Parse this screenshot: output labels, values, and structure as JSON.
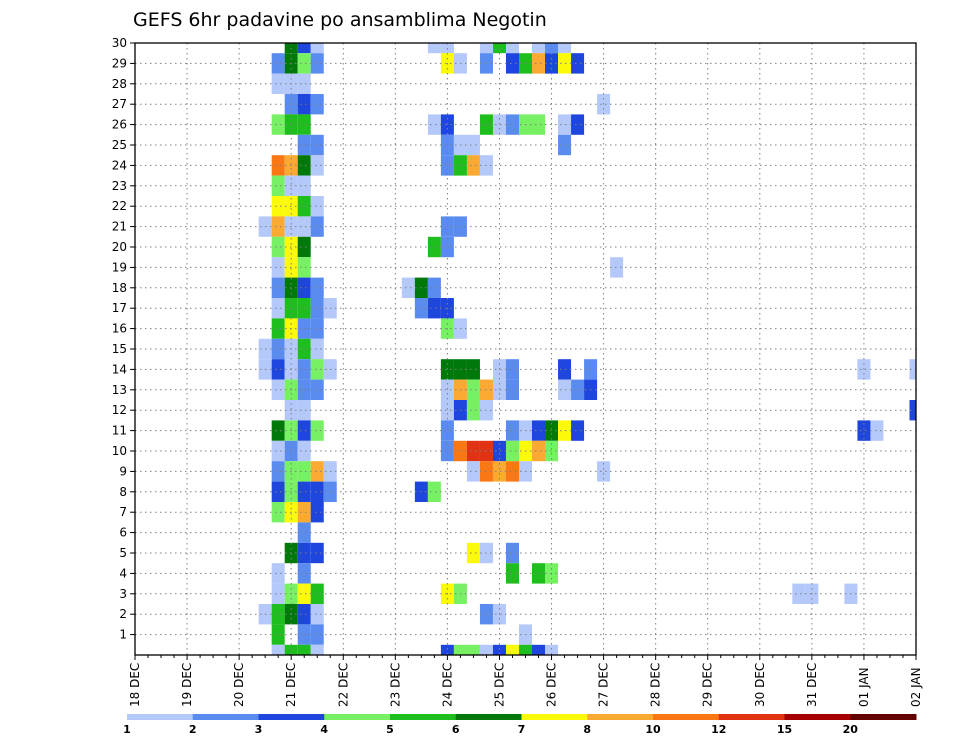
{
  "chart_data": {
    "type": "heatmap",
    "title": "GEFS 6hr padavine po ansamblima Negotin",
    "xlabel": "",
    "ylabel": "",
    "x_tick_labels": [
      "18 DEC",
      "19 DEC",
      "20 DEC",
      "21 DEC",
      "22 DEC",
      "23 DEC",
      "24 DEC",
      "25 DEC",
      "26 DEC",
      "27 DEC",
      "28 DEC",
      "29 DEC",
      "30 DEC",
      "31 DEC",
      "01 JAN",
      "02 JAN"
    ],
    "y_tick_labels": [
      "1",
      "2",
      "3",
      "4",
      "5",
      "6",
      "7",
      "8",
      "9",
      "10",
      "11",
      "12",
      "13",
      "14",
      "15",
      "16",
      "17",
      "18",
      "19",
      "20",
      "21",
      "22",
      "23",
      "24",
      "25",
      "26",
      "27",
      "28",
      "29",
      "30"
    ],
    "x_range_steps": [
      0,
      60
    ],
    "y_range": [
      0,
      30
    ],
    "steps_per_day": 4,
    "grid": true,
    "legend_position": "bottom",
    "colorbar": {
      "labels": [
        "1",
        "2",
        "3",
        "4",
        "5",
        "6",
        "7",
        "8",
        "10",
        "12",
        "15",
        "20"
      ],
      "colors": [
        "#b4c8fa",
        "#5a8cf0",
        "#1e46dc",
        "#78f064",
        "#1ebe1e",
        "#00780a",
        "#fafa0a",
        "#faaa32",
        "#fa7814",
        "#e13214",
        "#a50000",
        "#640000"
      ]
    },
    "levels": [
      1,
      2,
      3,
      4,
      5,
      6,
      7,
      8,
      10,
      12,
      15,
      20
    ],
    "cells": [
      [
        30,
        12,
        6
      ],
      [
        30,
        13,
        3
      ],
      [
        30,
        14,
        1
      ],
      [
        30,
        23,
        1
      ],
      [
        30,
        24,
        1
      ],
      [
        30,
        27,
        1
      ],
      [
        30,
        28,
        5
      ],
      [
        30,
        29,
        1
      ],
      [
        30,
        31,
        1
      ],
      [
        30,
        32,
        2
      ],
      [
        30,
        33,
        1
      ],
      [
        29,
        11,
        2
      ],
      [
        29,
        12,
        6
      ],
      [
        29,
        13,
        4
      ],
      [
        29,
        14,
        2
      ],
      [
        29,
        24,
        7
      ],
      [
        29,
        25,
        1
      ],
      [
        29,
        27,
        2
      ],
      [
        29,
        29,
        3
      ],
      [
        29,
        30,
        5
      ],
      [
        29,
        31,
        8
      ],
      [
        29,
        32,
        3
      ],
      [
        29,
        33,
        7
      ],
      [
        29,
        34,
        3
      ],
      [
        28,
        11,
        1
      ],
      [
        28,
        12,
        1
      ],
      [
        28,
        13,
        1
      ],
      [
        27,
        12,
        2
      ],
      [
        27,
        13,
        3
      ],
      [
        27,
        14,
        2
      ],
      [
        27,
        36,
        1
      ],
      [
        26,
        11,
        4
      ],
      [
        26,
        12,
        5
      ],
      [
        26,
        13,
        5
      ],
      [
        26,
        23,
        1
      ],
      [
        26,
        24,
        3
      ],
      [
        26,
        27,
        5
      ],
      [
        26,
        28,
        1
      ],
      [
        26,
        29,
        2
      ],
      [
        26,
        30,
        4
      ],
      [
        26,
        31,
        4
      ],
      [
        26,
        33,
        1
      ],
      [
        26,
        34,
        3
      ],
      [
        25,
        13,
        2
      ],
      [
        25,
        14,
        2
      ],
      [
        25,
        24,
        2
      ],
      [
        25,
        25,
        1
      ],
      [
        25,
        26,
        1
      ],
      [
        25,
        33,
        2
      ],
      [
        24,
        11,
        10
      ],
      [
        24,
        12,
        8
      ],
      [
        24,
        13,
        6
      ],
      [
        24,
        14,
        1
      ],
      [
        24,
        24,
        2
      ],
      [
        24,
        25,
        5
      ],
      [
        24,
        26,
        8
      ],
      [
        24,
        27,
        1
      ],
      [
        23,
        11,
        4
      ],
      [
        23,
        12,
        1
      ],
      [
        23,
        13,
        1
      ],
      [
        22,
        11,
        7
      ],
      [
        22,
        12,
        7
      ],
      [
        22,
        13,
        5
      ],
      [
        22,
        14,
        1
      ],
      [
        21,
        10,
        1
      ],
      [
        21,
        11,
        8
      ],
      [
        21,
        12,
        9
      ],
      [
        21,
        13,
        9
      ],
      [
        21,
        14,
        2
      ],
      [
        21,
        24,
        2
      ],
      [
        21,
        25,
        2
      ],
      [
        20,
        11,
        4
      ],
      [
        20,
        12,
        7
      ],
      [
        20,
        13,
        6
      ],
      [
        20,
        23,
        5
      ],
      [
        20,
        24,
        2
      ],
      [
        19,
        11,
        1
      ],
      [
        19,
        12,
        7
      ],
      [
        19,
        13,
        4
      ],
      [
        19,
        37,
        1
      ],
      [
        18,
        11,
        2
      ],
      [
        18,
        12,
        6
      ],
      [
        18,
        13,
        3
      ],
      [
        18,
        14,
        2
      ],
      [
        18,
        21,
        1
      ],
      [
        18,
        22,
        6
      ],
      [
        18,
        23,
        2
      ],
      [
        17,
        11,
        1
      ],
      [
        17,
        12,
        5
      ],
      [
        17,
        13,
        5
      ],
      [
        17,
        14,
        2
      ],
      [
        17,
        15,
        1
      ],
      [
        17,
        22,
        2
      ],
      [
        17,
        23,
        3
      ],
      [
        17,
        24,
        3
      ],
      [
        16,
        11,
        5
      ],
      [
        16,
        12,
        7
      ],
      [
        16,
        13,
        2
      ],
      [
        16,
        14,
        2
      ],
      [
        16,
        24,
        4
      ],
      [
        16,
        25,
        1
      ],
      [
        15,
        10,
        1
      ],
      [
        15,
        11,
        2
      ],
      [
        15,
        12,
        1
      ],
      [
        15,
        13,
        5
      ],
      [
        15,
        14,
        1
      ],
      [
        14,
        10,
        1
      ],
      [
        14,
        11,
        3
      ],
      [
        14,
        12,
        1
      ],
      [
        14,
        13,
        2
      ],
      [
        14,
        14,
        4
      ],
      [
        14,
        15,
        1
      ],
      [
        14,
        24,
        6
      ],
      [
        14,
        25,
        6
      ],
      [
        14,
        26,
        6
      ],
      [
        14,
        28,
        1
      ],
      [
        14,
        29,
        2
      ],
      [
        14,
        33,
        3
      ],
      [
        14,
        35,
        2
      ],
      [
        14,
        56,
        1
      ],
      [
        14,
        60,
        1
      ],
      [
        13,
        11,
        1
      ],
      [
        13,
        12,
        4
      ],
      [
        13,
        13,
        2
      ],
      [
        13,
        14,
        2
      ],
      [
        13,
        24,
        1
      ],
      [
        13,
        25,
        8
      ],
      [
        13,
        26,
        4
      ],
      [
        13,
        27,
        8
      ],
      [
        13,
        28,
        1
      ],
      [
        13,
        29,
        2
      ],
      [
        13,
        33,
        1
      ],
      [
        13,
        34,
        2
      ],
      [
        13,
        35,
        3
      ],
      [
        12,
        12,
        1
      ],
      [
        12,
        13,
        1
      ],
      [
        12,
        24,
        1
      ],
      [
        12,
        25,
        3
      ],
      [
        12,
        26,
        4
      ],
      [
        12,
        27,
        1
      ],
      [
        12,
        60,
        3
      ],
      [
        11,
        11,
        6
      ],
      [
        11,
        12,
        4
      ],
      [
        11,
        13,
        3
      ],
      [
        11,
        14,
        4
      ],
      [
        11,
        24,
        2
      ],
      [
        11,
        29,
        2
      ],
      [
        11,
        30,
        1
      ],
      [
        11,
        31,
        3
      ],
      [
        11,
        32,
        6
      ],
      [
        11,
        33,
        7
      ],
      [
        11,
        34,
        3
      ],
      [
        11,
        56,
        3
      ],
      [
        11,
        57,
        1
      ],
      [
        10,
        11,
        1
      ],
      [
        10,
        12,
        2
      ],
      [
        10,
        13,
        1
      ],
      [
        10,
        24,
        2
      ],
      [
        10,
        25,
        10
      ],
      [
        10,
        26,
        12
      ],
      [
        10,
        27,
        12
      ],
      [
        10,
        28,
        3
      ],
      [
        10,
        29,
        4
      ],
      [
        10,
        30,
        7
      ],
      [
        10,
        31,
        8
      ],
      [
        10,
        32,
        4
      ],
      [
        9,
        11,
        2
      ],
      [
        9,
        12,
        4
      ],
      [
        9,
        13,
        4
      ],
      [
        9,
        14,
        8
      ],
      [
        9,
        15,
        1
      ],
      [
        9,
        26,
        11
      ],
      [
        9,
        27,
        10
      ],
      [
        9,
        28,
        8
      ],
      [
        9,
        29,
        10
      ],
      [
        9,
        30,
        1
      ],
      [
        9,
        36,
        1
      ],
      [
        8,
        11,
        3
      ],
      [
        8,
        12,
        4
      ],
      [
        8,
        13,
        3
      ],
      [
        8,
        14,
        3
      ],
      [
        8,
        15,
        2
      ],
      [
        8,
        22,
        3
      ],
      [
        8,
        23,
        4
      ],
      [
        7,
        11,
        4
      ],
      [
        7,
        12,
        7
      ],
      [
        7,
        13,
        8
      ],
      [
        7,
        14,
        3
      ],
      [
        6,
        13,
        2
      ],
      [
        5,
        12,
        6
      ],
      [
        5,
        13,
        3
      ],
      [
        5,
        14,
        3
      ],
      [
        5,
        26,
        7
      ],
      [
        5,
        27,
        1
      ],
      [
        5,
        29,
        2
      ],
      [
        4,
        11,
        1
      ],
      [
        4,
        13,
        2
      ],
      [
        4,
        29,
        5
      ],
      [
        4,
        31,
        5
      ],
      [
        4,
        32,
        4
      ],
      [
        3,
        11,
        1
      ],
      [
        3,
        12,
        4
      ],
      [
        3,
        13,
        7
      ],
      [
        3,
        14,
        5
      ],
      [
        3,
        24,
        7
      ],
      [
        3,
        25,
        4
      ],
      [
        3,
        51,
        1
      ],
      [
        3,
        52,
        1
      ],
      [
        3,
        55,
        1
      ],
      [
        2,
        10,
        1
      ],
      [
        2,
        11,
        5
      ],
      [
        2,
        12,
        6
      ],
      [
        2,
        13,
        3
      ],
      [
        2,
        14,
        1
      ],
      [
        2,
        27,
        2
      ],
      [
        2,
        28,
        1
      ],
      [
        1,
        11,
        5
      ],
      [
        1,
        13,
        2
      ],
      [
        1,
        14,
        2
      ],
      [
        1,
        30,
        1
      ],
      [
        0,
        11,
        1
      ],
      [
        0,
        12,
        5
      ],
      [
        0,
        13,
        5
      ],
      [
        0,
        14,
        1
      ],
      [
        0,
        24,
        3
      ],
      [
        0,
        25,
        4
      ],
      [
        0,
        26,
        4
      ],
      [
        0,
        27,
        1
      ],
      [
        0,
        28,
        3
      ],
      [
        0,
        29,
        7
      ],
      [
        0,
        30,
        5
      ],
      [
        0,
        31,
        3
      ],
      [
        0,
        32,
        1
      ]
    ]
  }
}
